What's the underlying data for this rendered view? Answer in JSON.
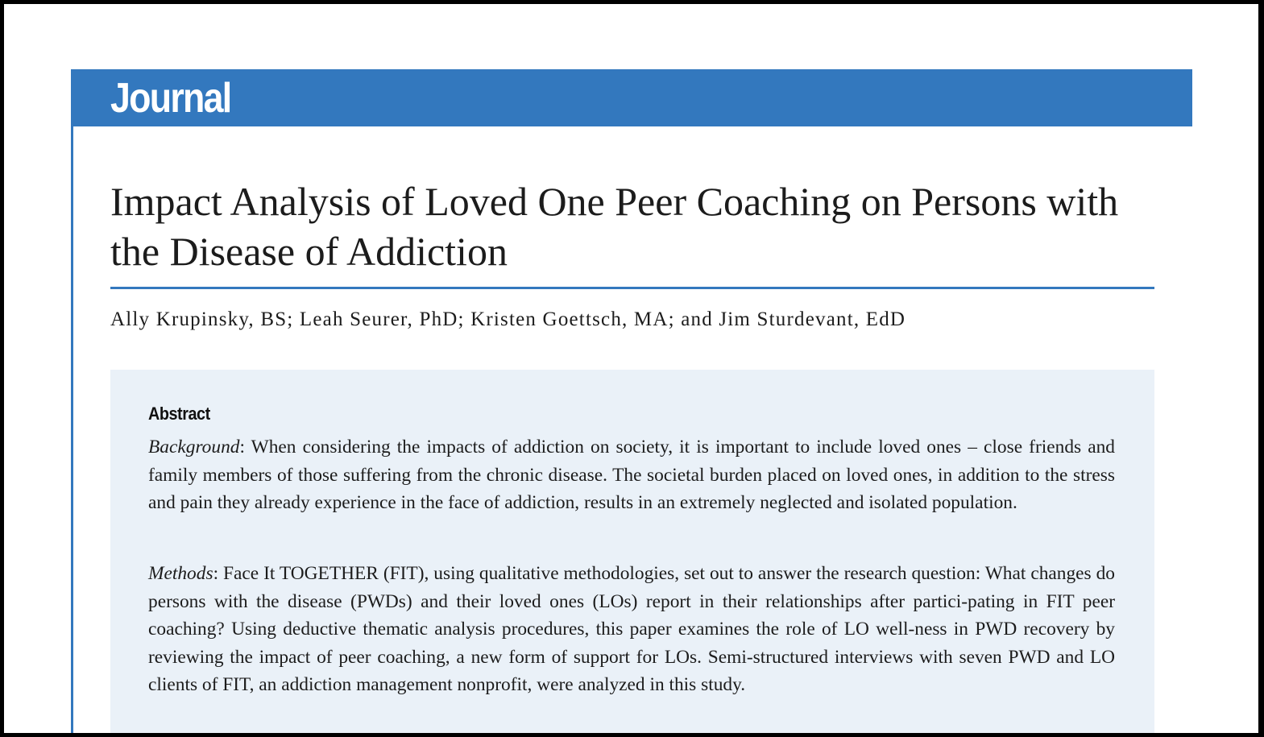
{
  "journal": {
    "name": "Journal"
  },
  "article": {
    "title": "Impact Analysis of Loved One Peer Coaching on Persons with the Disease of Addiction",
    "authors": "Ally Krupinsky, BS; Leah Seurer, PhD; Kristen Goettsch, MA; and Jim Sturdevant, EdD"
  },
  "abstract": {
    "heading": "Abstract",
    "sections": [
      {
        "label": "Background",
        "separator": ": ",
        "text": "When considering the impacts of addiction on society, it is important to include loved ones – close friends and family members of those suffering from the chronic disease. The societal burden placed on loved ones, in addition to the stress and pain they already experience in the face of addiction, results in an extremely neglected and isolated population."
      },
      {
        "label": "Methods",
        "separator": ": ",
        "text": "Face It TOGETHER (FIT), using qualitative methodologies, set out to answer the research question: What changes do persons with the disease (PWDs) and their loved ones (LOs) report in their relationships after partici-pating in FIT peer coaching? Using deductive thematic analysis procedures, this paper examines the role of LO well-ness in PWD recovery by reviewing the impact of peer coaching, a new form of support for LOs. Semi-structured interviews with seven PWD and LO clients of FIT, an addiction management nonprofit, were analyzed in this study."
      }
    ]
  },
  "colors": {
    "accent_blue": "#3378be",
    "abstract_background": "#eaf1f8",
    "text": "#1c1c1c",
    "frame": "#000000"
  }
}
